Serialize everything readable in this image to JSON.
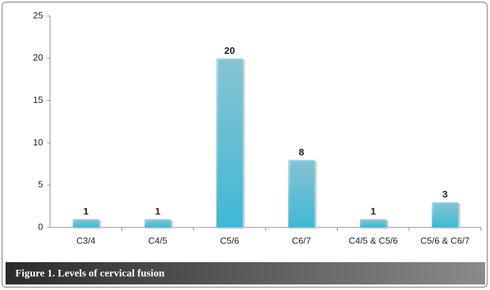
{
  "chart_data": {
    "type": "bar",
    "title": "Figure 1. Levels of cervical fusion",
    "categories": [
      "C3/4",
      "C4/5",
      "C5/6",
      "C6/7",
      "C4/5 & C5/6",
      "C5/6 & C6/7"
    ],
    "values": [
      1,
      1,
      20,
      8,
      1,
      3
    ],
    "color": "#3fb8d6",
    "ylim": [
      0,
      25
    ],
    "yticks": [
      0,
      5,
      10,
      15,
      20,
      25
    ],
    "grid": false
  }
}
